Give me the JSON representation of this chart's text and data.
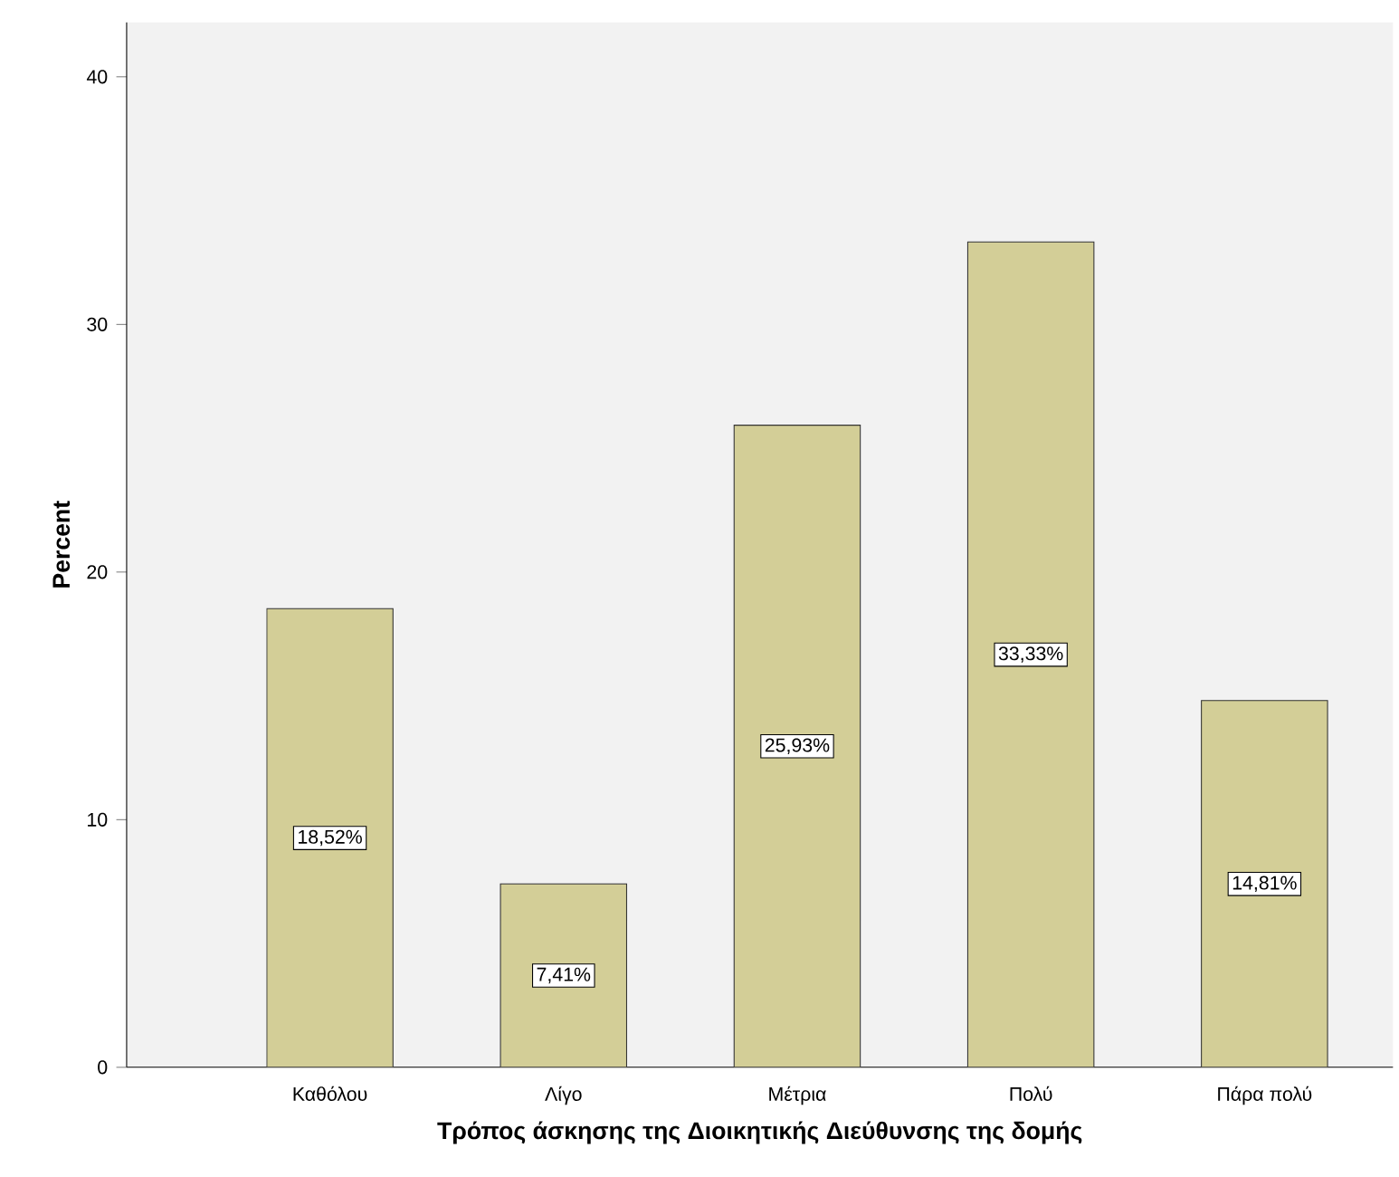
{
  "chart_data": {
    "type": "bar",
    "xlabel": "Τρόπος άσκησης της Διοικητικής Διεύθυνσης της δομής",
    "ylabel": "Percent",
    "categories": [
      "Καθόλου",
      "Λίγο",
      "Μέτρια",
      "Πολύ",
      "Πάρα πολύ"
    ],
    "values": [
      18.52,
      7.41,
      25.93,
      33.33,
      14.81
    ],
    "value_labels": [
      "18,52%",
      "7,41%",
      "25,93%",
      "33,33%",
      "14,81%"
    ],
    "color": "#d3ce97",
    "ylim": [
      0,
      42.2
    ],
    "yticks": [
      0,
      10,
      20,
      30,
      40
    ],
    "grid": false
  }
}
